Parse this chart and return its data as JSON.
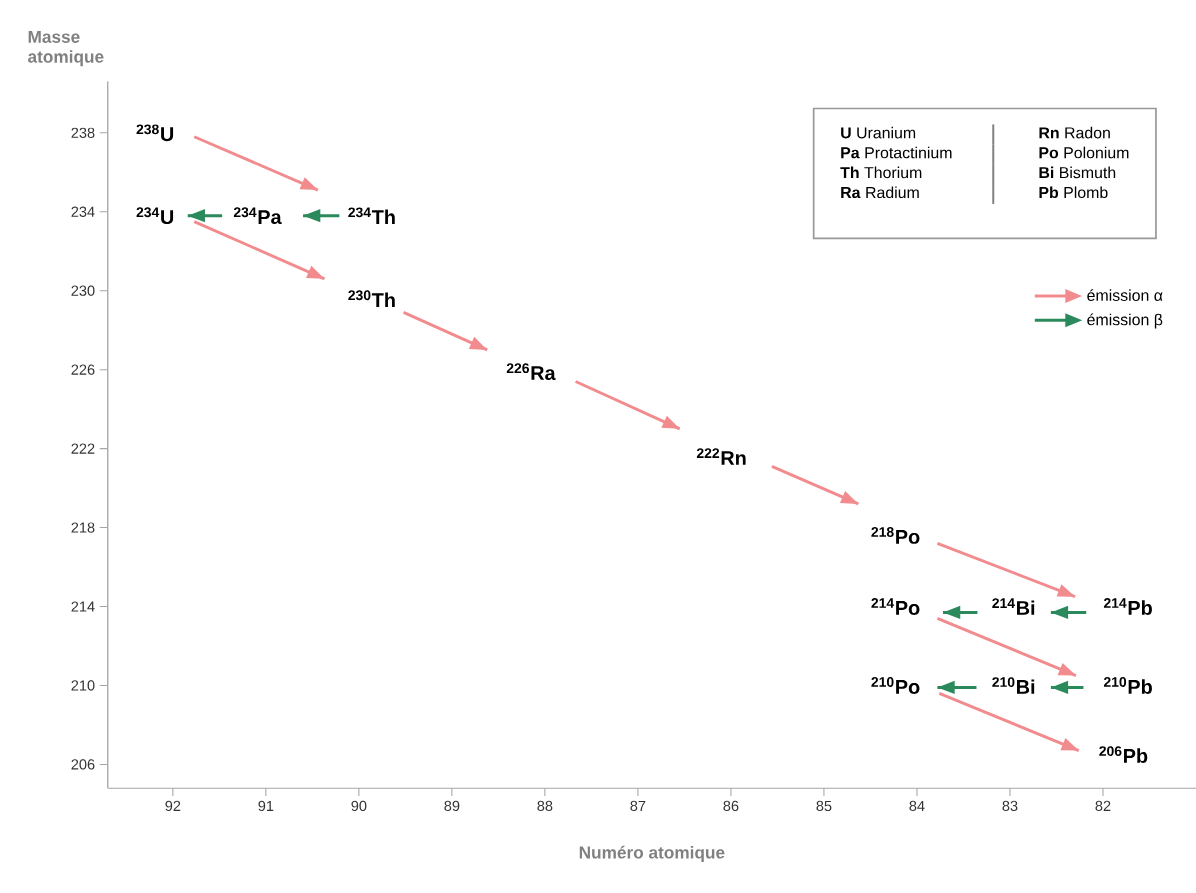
{
  "chart_data": {
    "type": "line",
    "xlabel": "Numéro atomique",
    "ylabel": "Masse atomique",
    "xlim": [
      92.7,
      81.0
    ],
    "ylim": [
      204.8,
      240.6
    ],
    "xticks": [
      92,
      91,
      90,
      89,
      88,
      87,
      86,
      85,
      84,
      83,
      82
    ],
    "yticks": [
      206,
      210,
      214,
      218,
      222,
      226,
      230,
      234,
      238
    ],
    "legend": "top right",
    "series": [
      {
        "name": "émission α",
        "color": "#f28b8e",
        "x": [
          91.77,
          90.44,
          null,
          91.77,
          90.37,
          null,
          89.52,
          88.62,
          null,
          87.67,
          86.55,
          null,
          85.56,
          84.63,
          null,
          83.78,
          82.3,
          null,
          83.78,
          82.29,
          null,
          83.76,
          82.26
        ],
        "values": [
          237.8,
          235.1,
          null,
          233.5,
          230.6,
          null,
          228.9,
          227.0,
          null,
          225.4,
          223.0,
          null,
          221.1,
          219.2,
          null,
          217.2,
          214.5,
          null,
          213.4,
          210.5,
          null,
          209.6,
          206.7
        ]
      },
      {
        "name": "émission β",
        "color": "#2a8a5c",
        "x": [
          90.21,
          90.6,
          null,
          91.47,
          91.84,
          null,
          82.18,
          82.56,
          null,
          83.35,
          83.72,
          null,
          82.21,
          82.56,
          null,
          83.36,
          83.78
        ],
        "values": [
          233.8,
          233.8,
          null,
          233.8,
          233.8,
          null,
          213.7,
          213.7,
          null,
          213.7,
          213.7,
          null,
          209.9,
          209.9,
          null,
          209.9,
          209.9
        ]
      }
    ],
    "annotations": [
      "$^{238}$U",
      "$^{234}$Th",
      "$^{234}$Pa",
      "$^{234}$U",
      "$^{230}$Th",
      "$^{226}$Ra",
      "$^{222}$Rn",
      "$^{218}$Po",
      "$^{214}$Pb",
      "$^{214}$Bi",
      "$^{214}$Po",
      "$^{210}$Pb",
      "$^{210}$Bi",
      "$^{210}$Po",
      "$^{206}$Pb",
      "**U** Uranium",
      "**Pa** Protactinium",
      "**Th** Thorium",
      "**Ra** Radium",
      "**Rn** Radon",
      "**Po** Polonium",
      "**Bi** Bismuth",
      "**Pb** Plomb"
    ]
  }
}
